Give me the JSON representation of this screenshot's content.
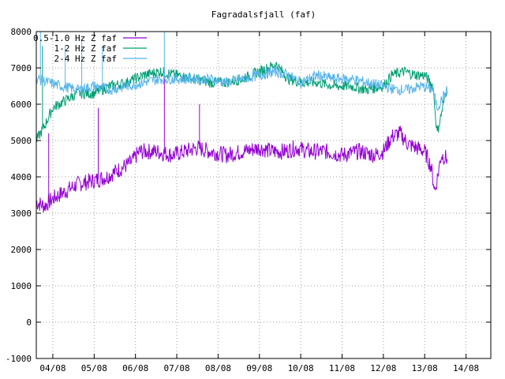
{
  "chart_data": {
    "type": "line",
    "title": "Fagradalsfjall (faf)",
    "xlabel": "",
    "ylabel": "",
    "ylim": [
      -1000,
      8000
    ],
    "xlim": [
      3.6,
      14.6
    ],
    "grid": true,
    "legend_position": "top-left",
    "yticks": [
      -1000,
      0,
      1000,
      2000,
      3000,
      4000,
      5000,
      6000,
      7000,
      8000
    ],
    "xticks": [
      {
        "value": 4,
        "label": "04/08"
      },
      {
        "value": 5,
        "label": "05/08"
      },
      {
        "value": 6,
        "label": "06/08"
      },
      {
        "value": 7,
        "label": "07/08"
      },
      {
        "value": 8,
        "label": "08/08"
      },
      {
        "value": 9,
        "label": "09/08"
      },
      {
        "value": 10,
        "label": "10/08"
      },
      {
        "value": 11,
        "label": "11/08"
      },
      {
        "value": 12,
        "label": "12/08"
      },
      {
        "value": 13,
        "label": "13/08"
      },
      {
        "value": 14,
        "label": "14/08"
      }
    ],
    "series": [
      {
        "name": "0.5-1.0 Hz Z faf",
        "color": "#9400d3",
        "x": [
          3.6,
          3.8,
          4.0,
          4.3,
          4.6,
          5.0,
          5.3,
          5.6,
          5.9,
          6.1,
          6.5,
          6.9,
          7.2,
          7.5,
          7.8,
          8.2,
          8.6,
          9.0,
          9.3,
          9.6,
          9.9,
          10.2,
          10.6,
          11.0,
          11.4,
          11.8,
          12.0,
          12.2,
          12.4,
          12.6,
          12.8,
          13.0,
          13.15,
          13.25,
          13.4,
          13.55
        ],
        "y": [
          3300,
          3200,
          3400,
          3600,
          3800,
          3900,
          4000,
          4200,
          4400,
          4700,
          4700,
          4600,
          4700,
          4800,
          4700,
          4600,
          4700,
          4800,
          4700,
          4700,
          4800,
          4700,
          4700,
          4600,
          4700,
          4600,
          4700,
          5100,
          5200,
          4900,
          4800,
          4700,
          4300,
          3600,
          4600,
          4500
        ],
        "spikes": [
          {
            "x": 6.7,
            "y": 6900
          },
          {
            "x": 7.55,
            "y": 6000
          },
          {
            "x": 5.1,
            "y": 5900
          },
          {
            "x": 3.9,
            "y": 5200
          }
        ]
      },
      {
        "name": "1-2 Hz Z faf",
        "color": "#009e73",
        "x": [
          3.6,
          3.8,
          4.0,
          4.3,
          4.6,
          5.0,
          5.4,
          5.8,
          6.2,
          6.6,
          7.0,
          7.4,
          7.8,
          8.2,
          8.6,
          9.0,
          9.4,
          9.7,
          10.0,
          10.4,
          10.8,
          11.2,
          11.6,
          12.0,
          12.2,
          12.5,
          12.8,
          13.0,
          13.2,
          13.3,
          13.55
        ],
        "y": [
          5000,
          5400,
          5900,
          6100,
          6300,
          6300,
          6500,
          6600,
          6800,
          6900,
          6800,
          6700,
          6600,
          6600,
          6700,
          6900,
          7100,
          6700,
          6600,
          6600,
          6500,
          6500,
          6400,
          6500,
          6800,
          6900,
          6800,
          6800,
          6500,
          5200,
          6500
        ],
        "spikes": [
          {
            "x": 3.75,
            "y": 7600
          }
        ]
      },
      {
        "name": "2-4 Hz Z faf",
        "color": "#56b4e9",
        "x": [
          3.6,
          3.9,
          4.2,
          4.6,
          5.0,
          5.4,
          5.8,
          6.2,
          6.6,
          7.0,
          7.4,
          7.8,
          8.2,
          8.6,
          9.0,
          9.4,
          9.7,
          10.0,
          10.4,
          10.8,
          11.2,
          11.6,
          12.0,
          12.3,
          12.6,
          12.9,
          13.2,
          13.3,
          13.55
        ],
        "y": [
          6700,
          6600,
          6500,
          6400,
          6500,
          6400,
          6500,
          6600,
          6700,
          6700,
          6700,
          6700,
          6600,
          6700,
          6800,
          6900,
          6800,
          6600,
          6800,
          6700,
          6700,
          6600,
          6500,
          6400,
          6400,
          6500,
          6400,
          5900,
          6400
        ],
        "spikes": [
          {
            "x": 3.7,
            "y": 8000
          },
          {
            "x": 4.3,
            "y": 7600
          },
          {
            "x": 4.7,
            "y": 7800
          },
          {
            "x": 5.2,
            "y": 7600
          },
          {
            "x": 6.7,
            "y": 8000
          }
        ]
      }
    ]
  }
}
